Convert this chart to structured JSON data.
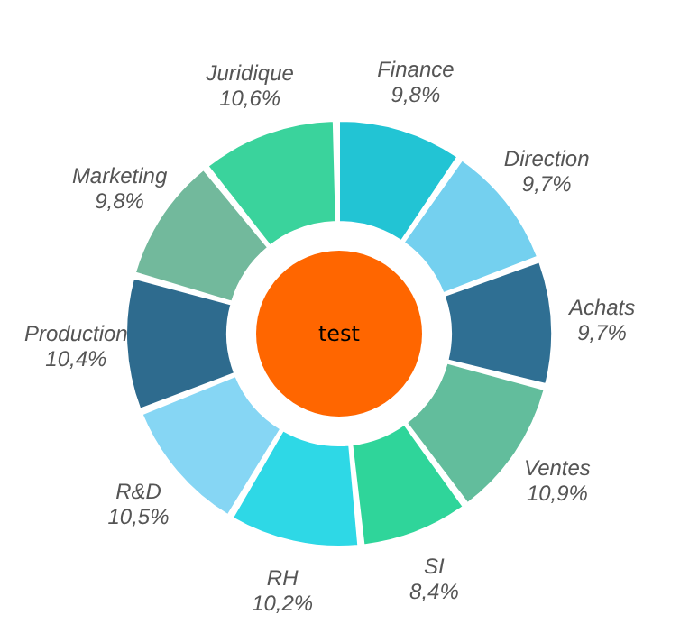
{
  "chart_data": {
    "type": "donut",
    "categories": [
      "Finance",
      "Direction",
      "Achats",
      "Ventes",
      "SI",
      "RH",
      "R&D",
      "Production",
      "Marketing",
      "Juridique"
    ],
    "values": [
      9.8,
      9.7,
      9.7,
      10.9,
      8.4,
      10.2,
      10.5,
      10.4,
      9.8,
      10.6
    ],
    "value_labels": [
      "9,8%",
      "9,7%",
      "9,7%",
      "10,9%",
      "8,4%",
      "10,2%",
      "10,5%",
      "10,4%",
      "9,8%",
      "10,6%"
    ],
    "colors": [
      "#22c4d4",
      "#74d0ef",
      "#2f6f93",
      "#62bd9c",
      "#2fd59a",
      "#2ed8e6",
      "#86d6f4",
      "#2e6b8e",
      "#72b99c",
      "#3ad39c"
    ],
    "annotations": [
      "test"
    ],
    "legend": false
  }
}
